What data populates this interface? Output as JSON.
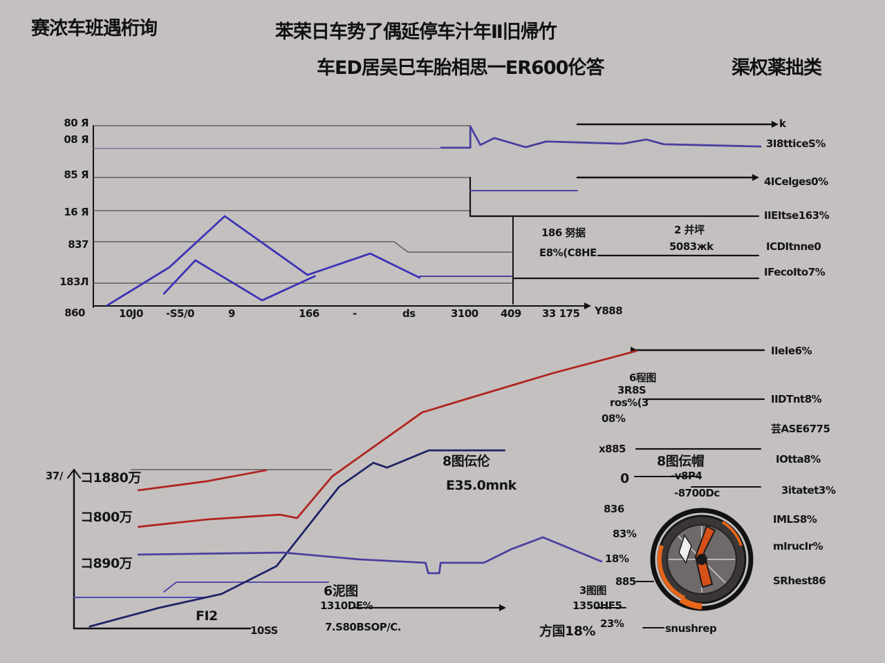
{
  "header": {
    "title_left": "赛浓车班遇桁询",
    "title_center": "苯荣日车势了偶延停车汁年Ⅱ旧帰竹",
    "subtitle_center": "车ED居吴巳车胎相思一ER600伦答",
    "title_right": "渠权薬拙类"
  },
  "colors": {
    "background": "#c4c0c0",
    "blue": "#3b32b5",
    "navy": "#1e2465",
    "red": "#b0241f",
    "purple": "#4a3f9e",
    "axis": "#111111",
    "wheel_accent": "#e8661a"
  },
  "chart_data": [
    {
      "type": "line",
      "grid": false,
      "xlim": [
        0,
        100
      ],
      "ylim": [
        0,
        100
      ],
      "yticks": [
        "80 Я",
        "08 Я",
        "85 Я",
        "16 Я",
        "837",
        "183Л",
        "860"
      ],
      "xticks": [
        "10J0",
        "-S5/0",
        "9",
        "166",
        "-",
        "ds",
        "3100",
        "409",
        "33 175",
        "Y888"
      ],
      "right_labels": [
        "k",
        "3I8tticeS%",
        "4ICelges0%",
        "IIEItse163%",
        "ICDItnne0",
        "IFecoIto7%"
      ],
      "annotations": [
        "186 努据",
        "E8%(C8HE",
        "2 并坪",
        "5083жk"
      ],
      "series": [
        {
          "color": "#3b32b5",
          "x": [
            2.1,
            11.4,
            19.7,
            32.1,
            41.5,
            48.9
          ],
          "y": [
            1.1,
            21.9,
            49.8,
            17.7,
            29.4,
            16.2
          ]
        },
        {
          "color": "#3b32b5",
          "x": [
            10.6,
            15.3,
            25.3,
            33.2
          ],
          "y": [
            7.5,
            25.7,
            3.8,
            17.0
          ]
        },
        {
          "color": "#4a3f9e",
          "x": [
            52.1,
            56.5,
            56.5,
            58.0,
            60.1,
            64.8,
            67.9,
            79.3,
            82.9,
            85.5,
            100
          ],
          "y": [
            87.2,
            87.2,
            98.9,
            88.7,
            92.5,
            87.5,
            90.6,
            89.4,
            91.7,
            89.1,
            87.9
          ]
        }
      ]
    },
    {
      "type": "line",
      "grid": false,
      "xlim": [
        0,
        100
      ],
      "ylim": [
        0,
        100
      ],
      "yticks": [
        "37/",
        "コ1880万",
        "コ800万",
        "コ890万"
      ],
      "xticks": [
        "FI2",
        "10SS"
      ],
      "right_labels": [
        "IIeIe6%",
        "IIDTnt8%",
        "芸ASE6775",
        "IOtta8%",
        "3itatet3%",
        "IMLS8%",
        "mIrucIr%",
        "SRhest86",
        "snushrep"
      ],
      "annotations": [
        "6程图",
        "3R8S",
        "ros%(3",
        "08%",
        "x885",
        "8图伝伦",
        "E35.0mnk",
        "8图伝帽",
        "0",
        "-v8P4",
        "-8700Dc",
        "836",
        "83%",
        "18%",
        "885",
        "6泥图",
        "1310DE%",
        "7.S80BSOP/C.",
        "3图图",
        "1350HF5",
        "23%",
        "方国18%"
      ],
      "series": [
        {
          "color": "#b0241f",
          "x": [
            9.4,
            19.4,
            30.0,
            32.5,
            37.6,
            50.7,
            59.7,
            69.8,
            81.9
          ],
          "y": [
            35.9,
            38.5,
            40.2,
            39.0,
            53.7,
            76.3,
            82.9,
            90.2,
            98.0
          ]
        },
        {
          "color": "#b0241f",
          "x": [
            9.4,
            19.4,
            28.0
          ],
          "y": [
            48.8,
            52.0,
            55.9
          ]
        },
        {
          "color": "#1e2465",
          "x": [
            2.3,
            12.4,
            21.5,
            29.5,
            38.6,
            43.6,
            45.6,
            51.7,
            62.7
          ],
          "y": [
            0.7,
            7.3,
            12.2,
            22.0,
            50.0,
            58.5,
            56.8,
            62.9,
            62.9
          ]
        },
        {
          "color": "#4a3f9e",
          "x": [
            9.4,
            30.5,
            41.6,
            51.2,
            51.6,
            53.2,
            53.4,
            59.7,
            63.7,
            68.3,
            76.8
          ],
          "y": [
            26.1,
            26.8,
            24.4,
            23.2,
            19.5,
            19.5,
            23.2,
            23.2,
            28.0,
            32.2,
            23.7
          ]
        }
      ]
    }
  ]
}
